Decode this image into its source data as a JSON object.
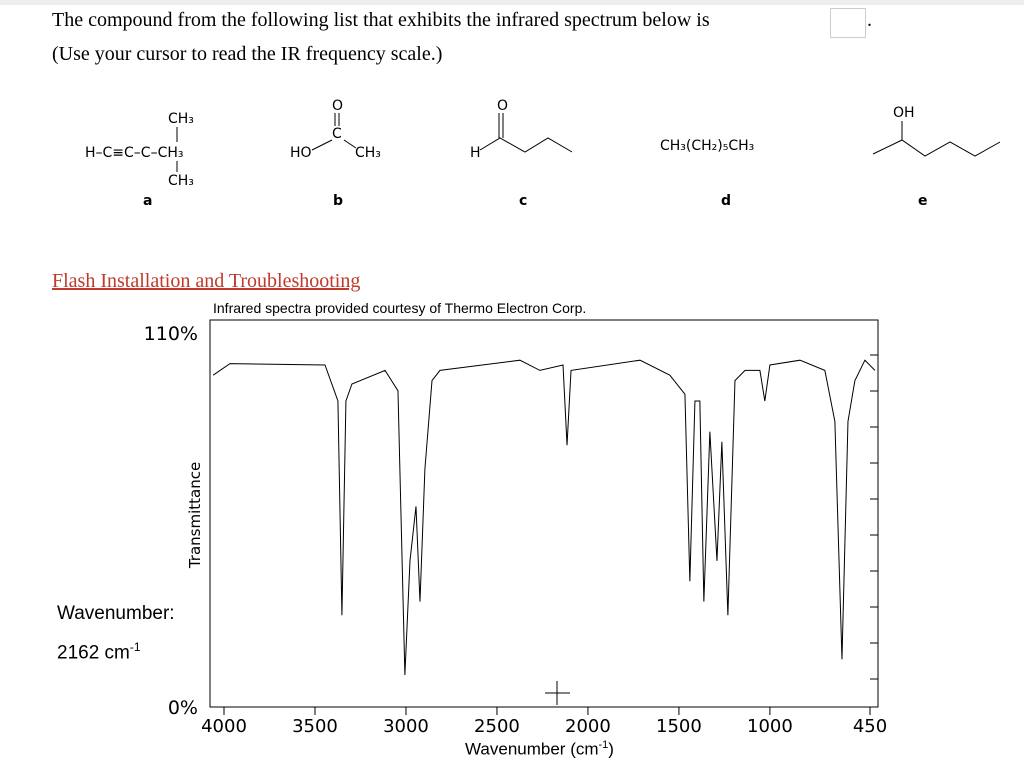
{
  "question": {
    "line1": "The compound from the following list that exhibits the infrared spectrum below is",
    "period": ".",
    "line2": "(Use your cursor to read the IR frequency scale.)"
  },
  "compounds": [
    {
      "letter": "a",
      "labels": [
        "CH₃",
        "H–C≡C–C–CH₃",
        "CH₃"
      ]
    },
    {
      "letter": "b",
      "labels": [
        "O",
        "C",
        "HO",
        "CH₃"
      ]
    },
    {
      "letter": "c",
      "labels": [
        "O",
        "H"
      ]
    },
    {
      "letter": "d",
      "labels": [
        "CH₃(CH₂)₅CH₃"
      ]
    },
    {
      "letter": "e",
      "labels": [
        "OH"
      ]
    }
  ],
  "link": "Flash Installation and Troubleshooting",
  "credit": "Infrared spectra provided courtesy of Thermo Electron Corp.",
  "readout": {
    "label": "Wavenumber:",
    "value": "2162 cm",
    "exponent": "-1"
  },
  "chart_data": {
    "type": "line",
    "y_label": "Transmittance",
    "x_label": "Wavenumber (cm",
    "x_label_exponent": "-1",
    "x_label_end": ")",
    "color": "#000000",
    "xlim": [
      4077,
      406
    ],
    "ylim": [
      0,
      110
    ],
    "xticks": [
      4000,
      3500,
      3000,
      2500,
      2000,
      1500,
      1000,
      450
    ],
    "yticks": [
      {
        "value": 0,
        "label": "0%"
      },
      {
        "value": 110,
        "label": "110%"
      }
    ],
    "x": [
      4060,
      3967,
      3445,
      3374,
      3352,
      3330,
      3297,
      3115,
      3044,
      3006,
      2978,
      2945,
      2923,
      2896,
      2857,
      2813,
      2374,
      2264,
      2137,
      2115,
      2093,
      1714,
      1550,
      1467,
      1440,
      1412,
      1385,
      1363,
      1330,
      1291,
      1264,
      1231,
      1192,
      1137,
      1055,
      1028,
      1000,
      835,
      698,
      643,
      604,
      571,
      533,
      478,
      423
    ],
    "values": [
      97.6,
      101,
      100.6,
      90,
      27,
      90,
      95,
      99,
      93,
      9.4,
      43,
      59,
      31,
      70,
      96,
      99,
      102,
      99,
      100.6,
      77,
      99,
      102,
      97.6,
      92,
      37,
      90,
      90,
      31,
      81,
      43,
      78,
      27,
      96,
      99,
      99,
      90,
      100.6,
      102,
      99,
      84,
      14,
      84,
      96,
      102,
      99
    ]
  }
}
